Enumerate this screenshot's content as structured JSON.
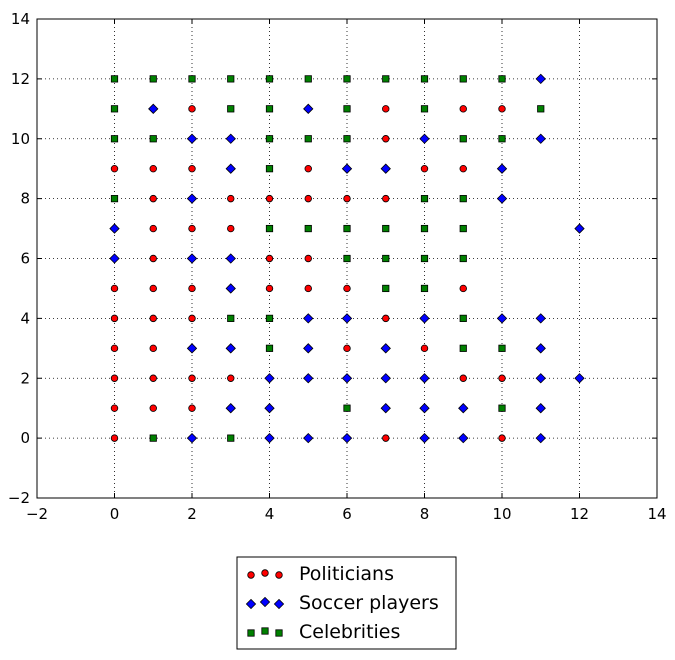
{
  "chart_data": {
    "type": "scatter",
    "xlim": [
      -2,
      14
    ],
    "ylim": [
      -2,
      14
    ],
    "x_ticks": [
      -2,
      0,
      2,
      4,
      6,
      8,
      10,
      12,
      14
    ],
    "y_ticks": [
      -2,
      0,
      2,
      4,
      6,
      8,
      10,
      12,
      14
    ],
    "grid": true,
    "legend_position": "bottom-center",
    "series": [
      {
        "name": "Politicians",
        "marker": "circle",
        "color": "#ff0000",
        "points": [
          [
            0,
            0
          ],
          [
            0,
            1
          ],
          [
            0,
            2
          ],
          [
            0,
            3
          ],
          [
            0,
            4
          ],
          [
            0,
            5
          ],
          [
            0,
            9
          ],
          [
            1,
            1
          ],
          [
            1,
            2
          ],
          [
            1,
            3
          ],
          [
            1,
            4
          ],
          [
            1,
            5
          ],
          [
            1,
            6
          ],
          [
            1,
            7
          ],
          [
            1,
            8
          ],
          [
            1,
            9
          ],
          [
            2,
            1
          ],
          [
            2,
            2
          ],
          [
            2,
            4
          ],
          [
            2,
            5
          ],
          [
            2,
            7
          ],
          [
            2,
            9
          ],
          [
            2,
            11
          ],
          [
            3,
            2
          ],
          [
            3,
            7
          ],
          [
            3,
            8
          ],
          [
            4,
            5
          ],
          [
            4,
            6
          ],
          [
            4,
            8
          ],
          [
            5,
            5
          ],
          [
            5,
            6
          ],
          [
            5,
            8
          ],
          [
            5,
            9
          ],
          [
            6,
            3
          ],
          [
            6,
            5
          ],
          [
            6,
            8
          ],
          [
            7,
            0
          ],
          [
            7,
            4
          ],
          [
            7,
            8
          ],
          [
            7,
            10
          ],
          [
            7,
            11
          ],
          [
            8,
            3
          ],
          [
            8,
            9
          ],
          [
            9,
            2
          ],
          [
            9,
            5
          ],
          [
            9,
            9
          ],
          [
            9,
            11
          ],
          [
            10,
            0
          ],
          [
            10,
            2
          ],
          [
            10,
            11
          ]
        ]
      },
      {
        "name": "Soccer players",
        "marker": "diamond",
        "color": "#0000ff",
        "points": [
          [
            0,
            6
          ],
          [
            0,
            7
          ],
          [
            1,
            11
          ],
          [
            2,
            0
          ],
          [
            2,
            3
          ],
          [
            2,
            6
          ],
          [
            2,
            8
          ],
          [
            2,
            10
          ],
          [
            3,
            1
          ],
          [
            3,
            3
          ],
          [
            3,
            5
          ],
          [
            3,
            6
          ],
          [
            3,
            9
          ],
          [
            3,
            10
          ],
          [
            4,
            0
          ],
          [
            4,
            1
          ],
          [
            4,
            2
          ],
          [
            5,
            0
          ],
          [
            5,
            2
          ],
          [
            5,
            3
          ],
          [
            5,
            4
          ],
          [
            5,
            11
          ],
          [
            6,
            0
          ],
          [
            6,
            2
          ],
          [
            6,
            4
          ],
          [
            6,
            9
          ],
          [
            7,
            1
          ],
          [
            7,
            2
          ],
          [
            7,
            3
          ],
          [
            7,
            9
          ],
          [
            8,
            0
          ],
          [
            8,
            1
          ],
          [
            8,
            2
          ],
          [
            8,
            4
          ],
          [
            8,
            10
          ],
          [
            9,
            0
          ],
          [
            9,
            1
          ],
          [
            10,
            4
          ],
          [
            10,
            8
          ],
          [
            10,
            9
          ],
          [
            11,
            0
          ],
          [
            11,
            1
          ],
          [
            11,
            2
          ],
          [
            11,
            3
          ],
          [
            11,
            4
          ],
          [
            11,
            10
          ],
          [
            11,
            12
          ],
          [
            12,
            2
          ],
          [
            12,
            7
          ]
        ]
      },
      {
        "name": "Celebrities",
        "marker": "square",
        "color": "#008000",
        "points": [
          [
            0,
            8
          ],
          [
            0,
            10
          ],
          [
            0,
            11
          ],
          [
            0,
            12
          ],
          [
            1,
            0
          ],
          [
            1,
            10
          ],
          [
            1,
            12
          ],
          [
            2,
            12
          ],
          [
            3,
            0
          ],
          [
            3,
            4
          ],
          [
            3,
            11
          ],
          [
            3,
            12
          ],
          [
            4,
            3
          ],
          [
            4,
            4
          ],
          [
            4,
            7
          ],
          [
            4,
            9
          ],
          [
            4,
            10
          ],
          [
            4,
            11
          ],
          [
            4,
            12
          ],
          [
            5,
            7
          ],
          [
            5,
            10
          ],
          [
            5,
            12
          ],
          [
            6,
            1
          ],
          [
            6,
            6
          ],
          [
            6,
            7
          ],
          [
            6,
            10
          ],
          [
            6,
            11
          ],
          [
            6,
            12
          ],
          [
            7,
            5
          ],
          [
            7,
            6
          ],
          [
            7,
            7
          ],
          [
            7,
            12
          ],
          [
            8,
            5
          ],
          [
            8,
            6
          ],
          [
            8,
            7
          ],
          [
            8,
            8
          ],
          [
            8,
            11
          ],
          [
            8,
            12
          ],
          [
            9,
            3
          ],
          [
            9,
            4
          ],
          [
            9,
            6
          ],
          [
            9,
            7
          ],
          [
            9,
            8
          ],
          [
            9,
            10
          ],
          [
            9,
            12
          ],
          [
            10,
            1
          ],
          [
            10,
            3
          ],
          [
            10,
            10
          ],
          [
            10,
            12
          ],
          [
            11,
            11
          ]
        ]
      }
    ]
  }
}
